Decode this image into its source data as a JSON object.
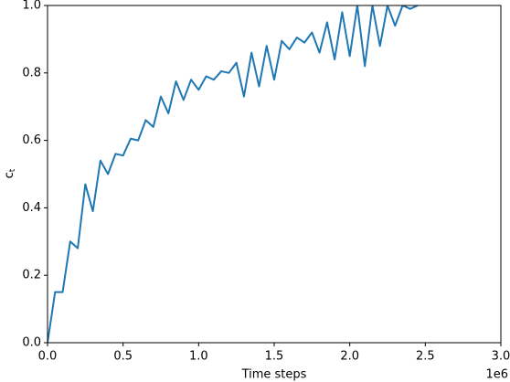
{
  "chart_data": {
    "type": "line",
    "xlabel": "Time steps",
    "x_offset_label": "1e6",
    "ylabel": {
      "text": "c",
      "subscript": "t"
    },
    "xlim": [
      0,
      3
    ],
    "ylim": [
      0,
      1
    ],
    "xticks": [
      {
        "value": 0,
        "label": "0.0"
      },
      0.5,
      {
        "value": 1,
        "label": "1.0"
      },
      1.5,
      {
        "value": 2,
        "label": "2.0"
      },
      2.5,
      {
        "value": 3,
        "label": "3.0"
      }
    ],
    "yticks": [
      {
        "value": 0,
        "label": "0.0"
      },
      0.2,
      0.4,
      0.6,
      0.8,
      {
        "value": 1,
        "label": "1.0"
      }
    ],
    "grid": false,
    "series": [
      {
        "color": "#1f77b4",
        "x": [
          0,
          0.05,
          0.1,
          0.15,
          0.2,
          0.25,
          0.3,
          0.35,
          0.4,
          0.45,
          0.5,
          0.55,
          0.6,
          0.65,
          0.7,
          0.75,
          0.8,
          0.85,
          0.9,
          0.95,
          1,
          1.05,
          1.1,
          1.15,
          1.2,
          1.25,
          1.3,
          1.35,
          1.4,
          1.45,
          1.5,
          1.55,
          1.6,
          1.65,
          1.7,
          1.75,
          1.8,
          1.85,
          1.9,
          1.95,
          2,
          2.05,
          2.1,
          2.15,
          2.2,
          2.25,
          2.3,
          2.35,
          2.4,
          2.45
        ],
        "values": [
          0,
          0.15,
          0.15,
          0.3,
          0.28,
          0.47,
          0.39,
          0.54,
          0.5,
          0.56,
          0.555,
          0.605,
          0.6,
          0.66,
          0.64,
          0.73,
          0.68,
          0.775,
          0.72,
          0.78,
          0.75,
          0.79,
          0.78,
          0.805,
          0.8,
          0.83,
          0.73,
          0.86,
          0.76,
          0.88,
          0.78,
          0.895,
          0.87,
          0.905,
          0.89,
          0.92,
          0.86,
          0.95,
          0.84,
          0.98,
          0.85,
          1,
          0.82,
          1,
          0.88,
          1,
          0.94,
          1,
          0.99,
          1
        ]
      }
    ]
  }
}
